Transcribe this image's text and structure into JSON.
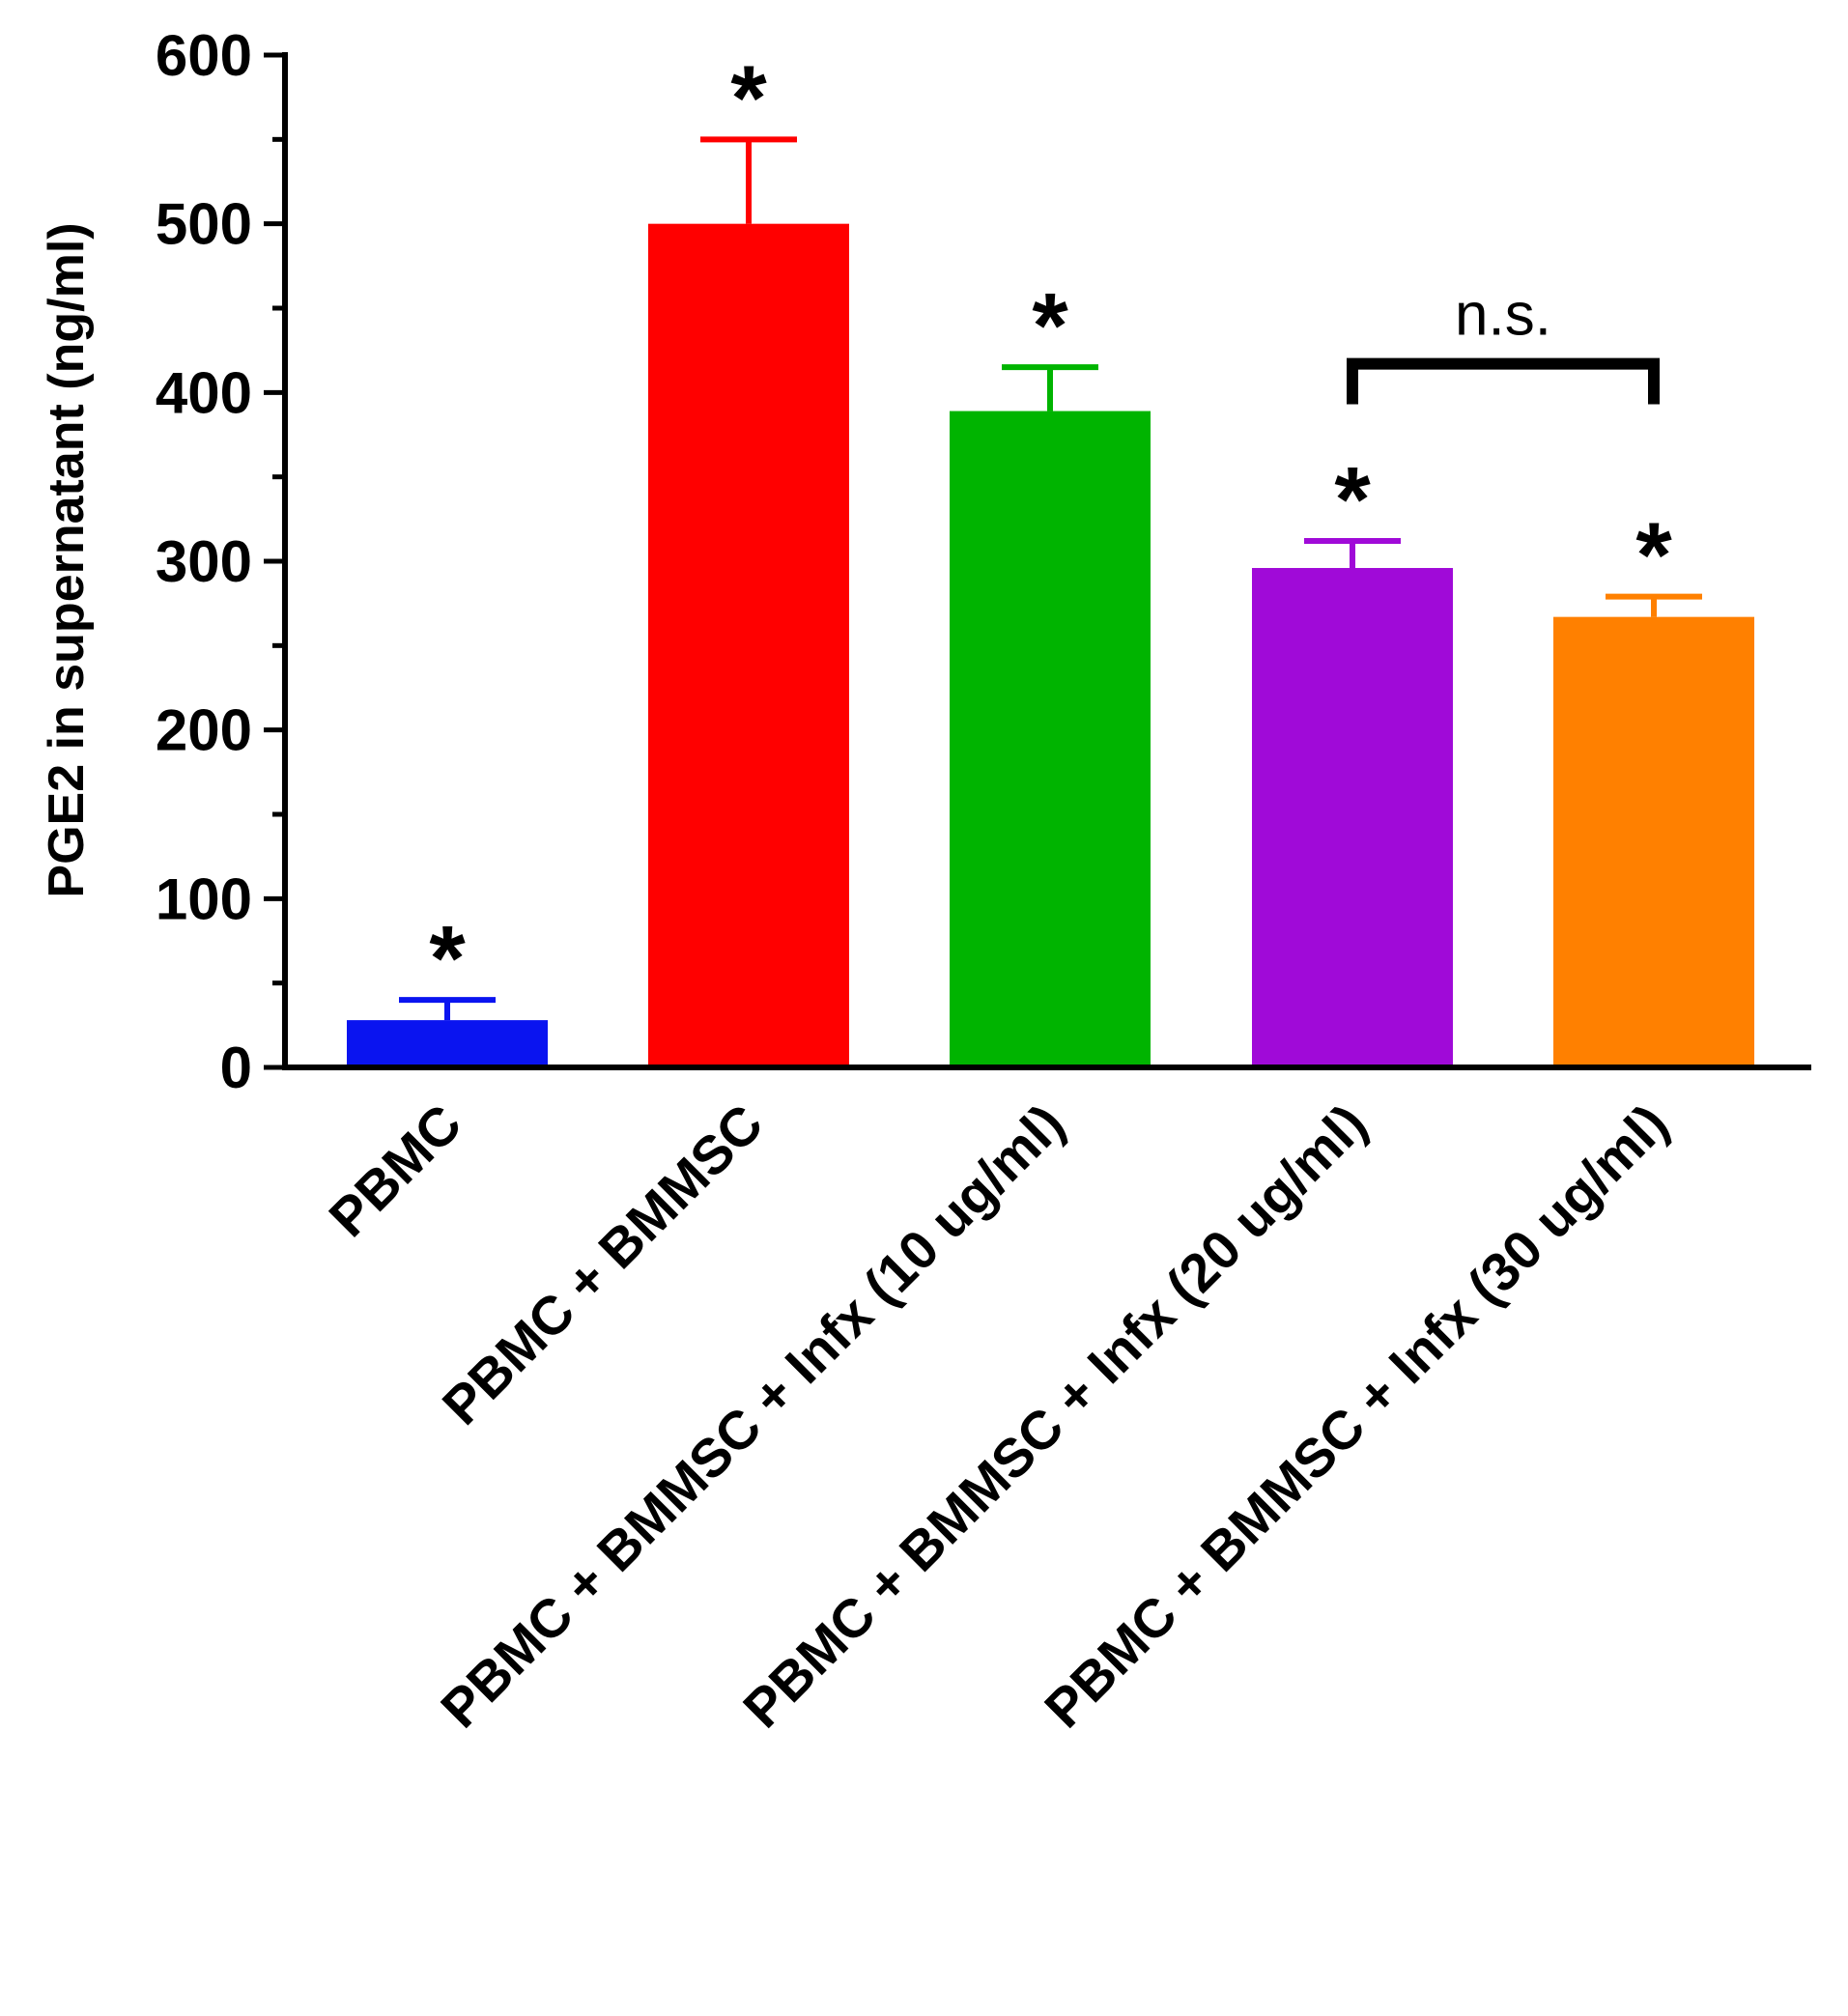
{
  "chart_data": {
    "type": "bar",
    "ylabel": "PGE2 in supernatant (ng/ml)",
    "ylim": [
      0,
      600
    ],
    "yticks": [
      0,
      100,
      200,
      300,
      400,
      500,
      600
    ],
    "categories": [
      "PBMC",
      "PBMC + BMMSC",
      "PBMC + BMMSC + Infx (10 ug/ml)",
      "PBMC + BMMSC + Infx (20 ug/ml)",
      "PBMC + BMMSC + Infx (30 ug/ml)"
    ],
    "values": [
      28,
      500,
      389,
      296,
      267
    ],
    "errors": [
      12,
      50,
      26,
      16,
      12
    ],
    "colors": [
      "#0a14f0",
      "#ff0000",
      "#00b400",
      "#a00ad8",
      "#ff8000"
    ],
    "significance": [
      "*",
      "*",
      "*",
      "*",
      "*"
    ],
    "comparison": {
      "from": 3,
      "to": 4,
      "label": "n.s."
    }
  }
}
